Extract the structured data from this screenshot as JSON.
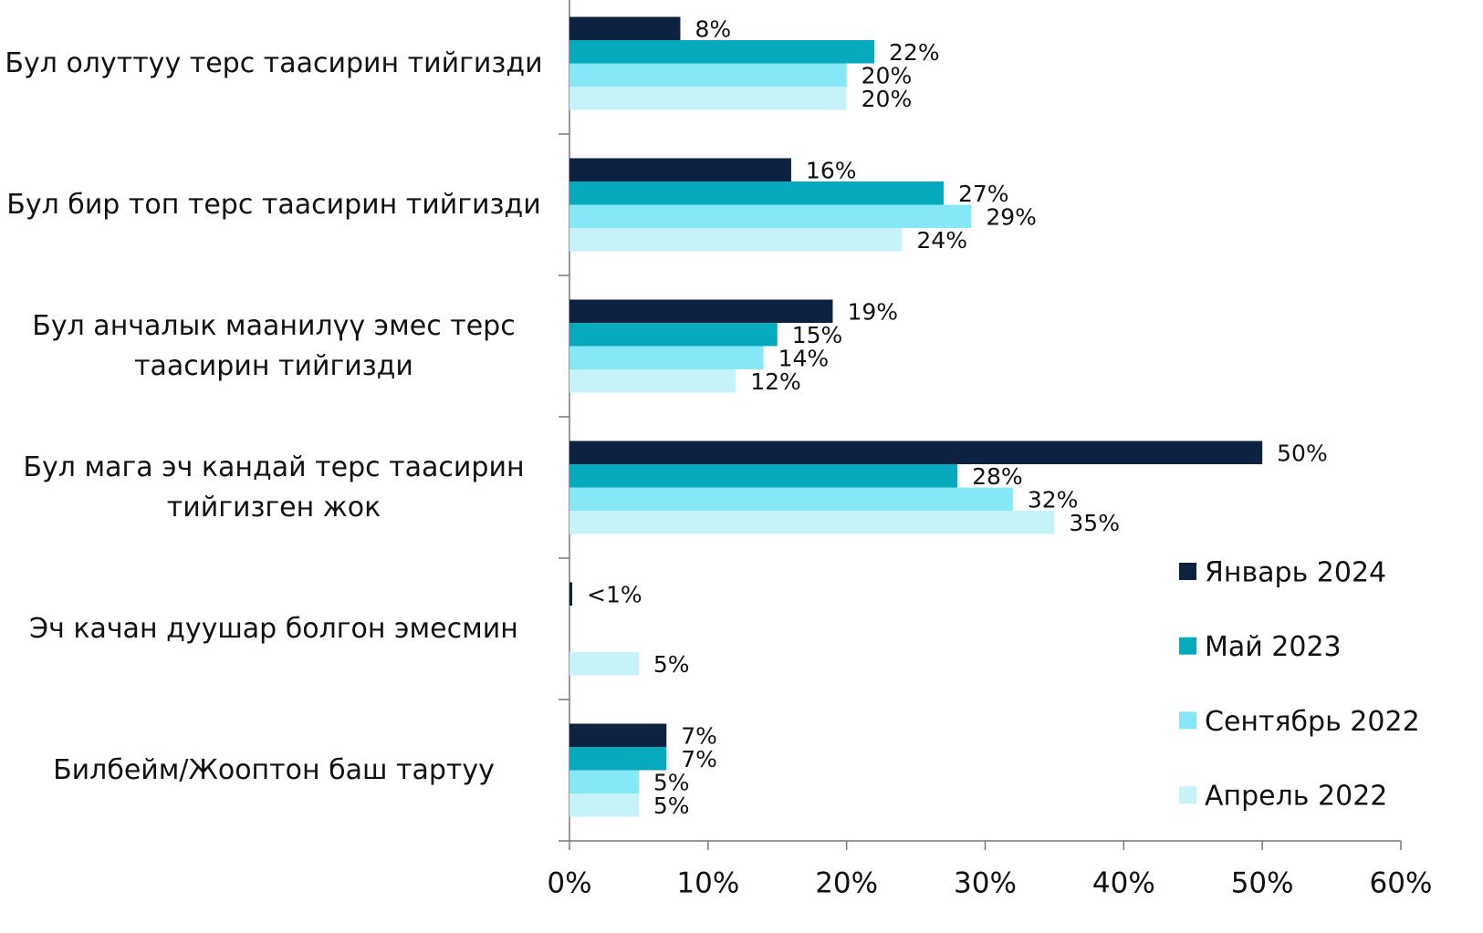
{
  "chart_data": {
    "type": "hbar",
    "categories": [
      "Бул олуттуу терс таасирин тийгизди",
      "Бул бир топ терс таасирин тийгизди",
      "Бул анчалык маанилүү эмес терс таасирин тийгизди",
      "Бул мага эч кандай терс таасирин тийгизген жок",
      "Эч качан дуушар болгон эмесмин",
      "Билбейм/Жооптон баш тартуу"
    ],
    "series": [
      {
        "name": "Январь 2024",
        "color": "#0d2240",
        "values": [
          8,
          16,
          19,
          50,
          0.2,
          7
        ],
        "value_labels": [
          "8%",
          "16%",
          "19%",
          "50%",
          "<1%",
          "7%"
        ]
      },
      {
        "name": "Май 2023",
        "color": "#07a9bd",
        "values": [
          22,
          27,
          15,
          28,
          null,
          7
        ],
        "value_labels": [
          "22%",
          "27%",
          "15%",
          "28%",
          null,
          "7%"
        ]
      },
      {
        "name": "Сентябрь 2022",
        "color": "#86e8f6",
        "values": [
          20,
          29,
          14,
          32,
          null,
          5
        ],
        "value_labels": [
          "20%",
          "29%",
          "14%",
          "32%",
          null,
          "5%"
        ]
      },
      {
        "name": "Апрель 2022",
        "color": "#c6f3f9",
        "values": [
          20,
          24,
          12,
          35,
          5,
          5
        ],
        "value_labels": [
          "20%",
          "24%",
          "12%",
          "35%",
          "5%",
          "5%"
        ]
      }
    ],
    "xlim": [
      0,
      60
    ],
    "xticks": [
      {
        "value": 0,
        "label": "0%"
      },
      {
        "value": 10,
        "label": "10%"
      },
      {
        "value": 20,
        "label": "20%"
      },
      {
        "value": 30,
        "label": "30%"
      },
      {
        "value": 40,
        "label": "40%"
      },
      {
        "value": 50,
        "label": "50%"
      },
      {
        "value": 60,
        "label": "60%"
      }
    ],
    "legend": "lower right"
  }
}
